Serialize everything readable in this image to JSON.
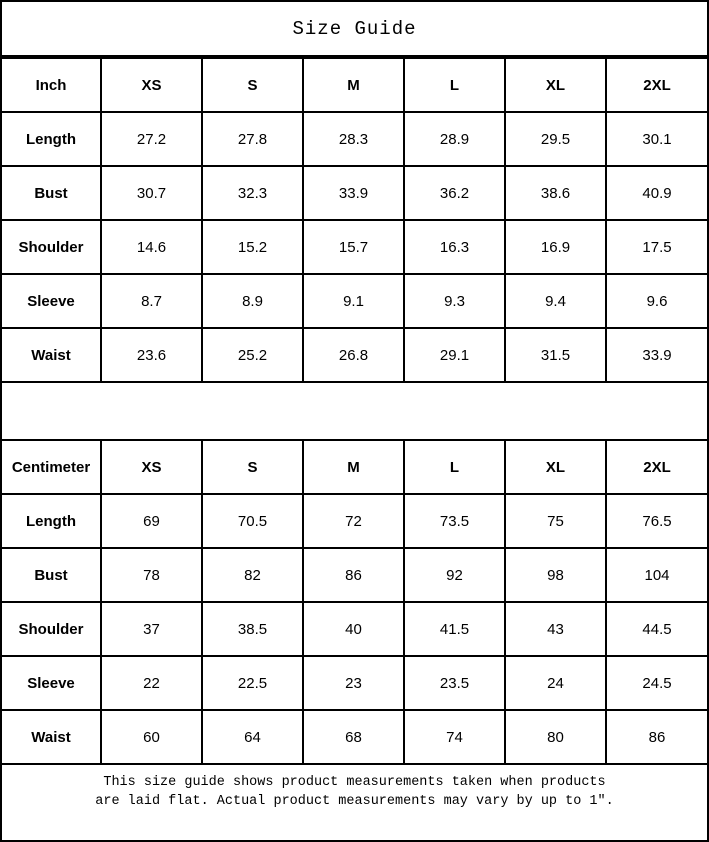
{
  "title": "Size Guide",
  "colors": {
    "border": "#000000",
    "background": "#ffffff",
    "text": "#000000"
  },
  "tables": [
    {
      "id": "inch",
      "unit_label": "Inch",
      "size_headers": [
        "XS",
        "S",
        "M",
        "L",
        "XL",
        "2XL"
      ],
      "rows": [
        {
          "label": "Length",
          "values": [
            "27.2",
            "27.8",
            "28.3",
            "28.9",
            "29.5",
            "30.1"
          ]
        },
        {
          "label": "Bust",
          "values": [
            "30.7",
            "32.3",
            "33.9",
            "36.2",
            "38.6",
            "40.9"
          ]
        },
        {
          "label": "Shoulder",
          "values": [
            "14.6",
            "15.2",
            "15.7",
            "16.3",
            "16.9",
            "17.5"
          ]
        },
        {
          "label": "Sleeve",
          "values": [
            "8.7",
            "8.9",
            "9.1",
            "9.3",
            "9.4",
            "9.6"
          ]
        },
        {
          "label": "Waist",
          "values": [
            "23.6",
            "25.2",
            "26.8",
            "29.1",
            "31.5",
            "33.9"
          ]
        }
      ]
    },
    {
      "id": "centimeter",
      "unit_label": "Centimeter",
      "size_headers": [
        "XS",
        "S",
        "M",
        "L",
        "XL",
        "2XL"
      ],
      "rows": [
        {
          "label": "Length",
          "values": [
            "69",
            "70.5",
            "72",
            "73.5",
            "75",
            "76.5"
          ]
        },
        {
          "label": "Bust",
          "values": [
            "78",
            "82",
            "86",
            "92",
            "98",
            "104"
          ]
        },
        {
          "label": "Shoulder",
          "values": [
            "37",
            "38.5",
            "40",
            "41.5",
            "43",
            "44.5"
          ]
        },
        {
          "label": "Sleeve",
          "values": [
            "22",
            "22.5",
            "23",
            "23.5",
            "24",
            "24.5"
          ]
        },
        {
          "label": "Waist",
          "values": [
            "60",
            "64",
            "68",
            "74",
            "80",
            "86"
          ]
        }
      ]
    }
  ],
  "footer": {
    "line1": "This size guide shows product measurements taken when products",
    "line2": "are laid flat. Actual product measurements may vary by up to 1″."
  }
}
